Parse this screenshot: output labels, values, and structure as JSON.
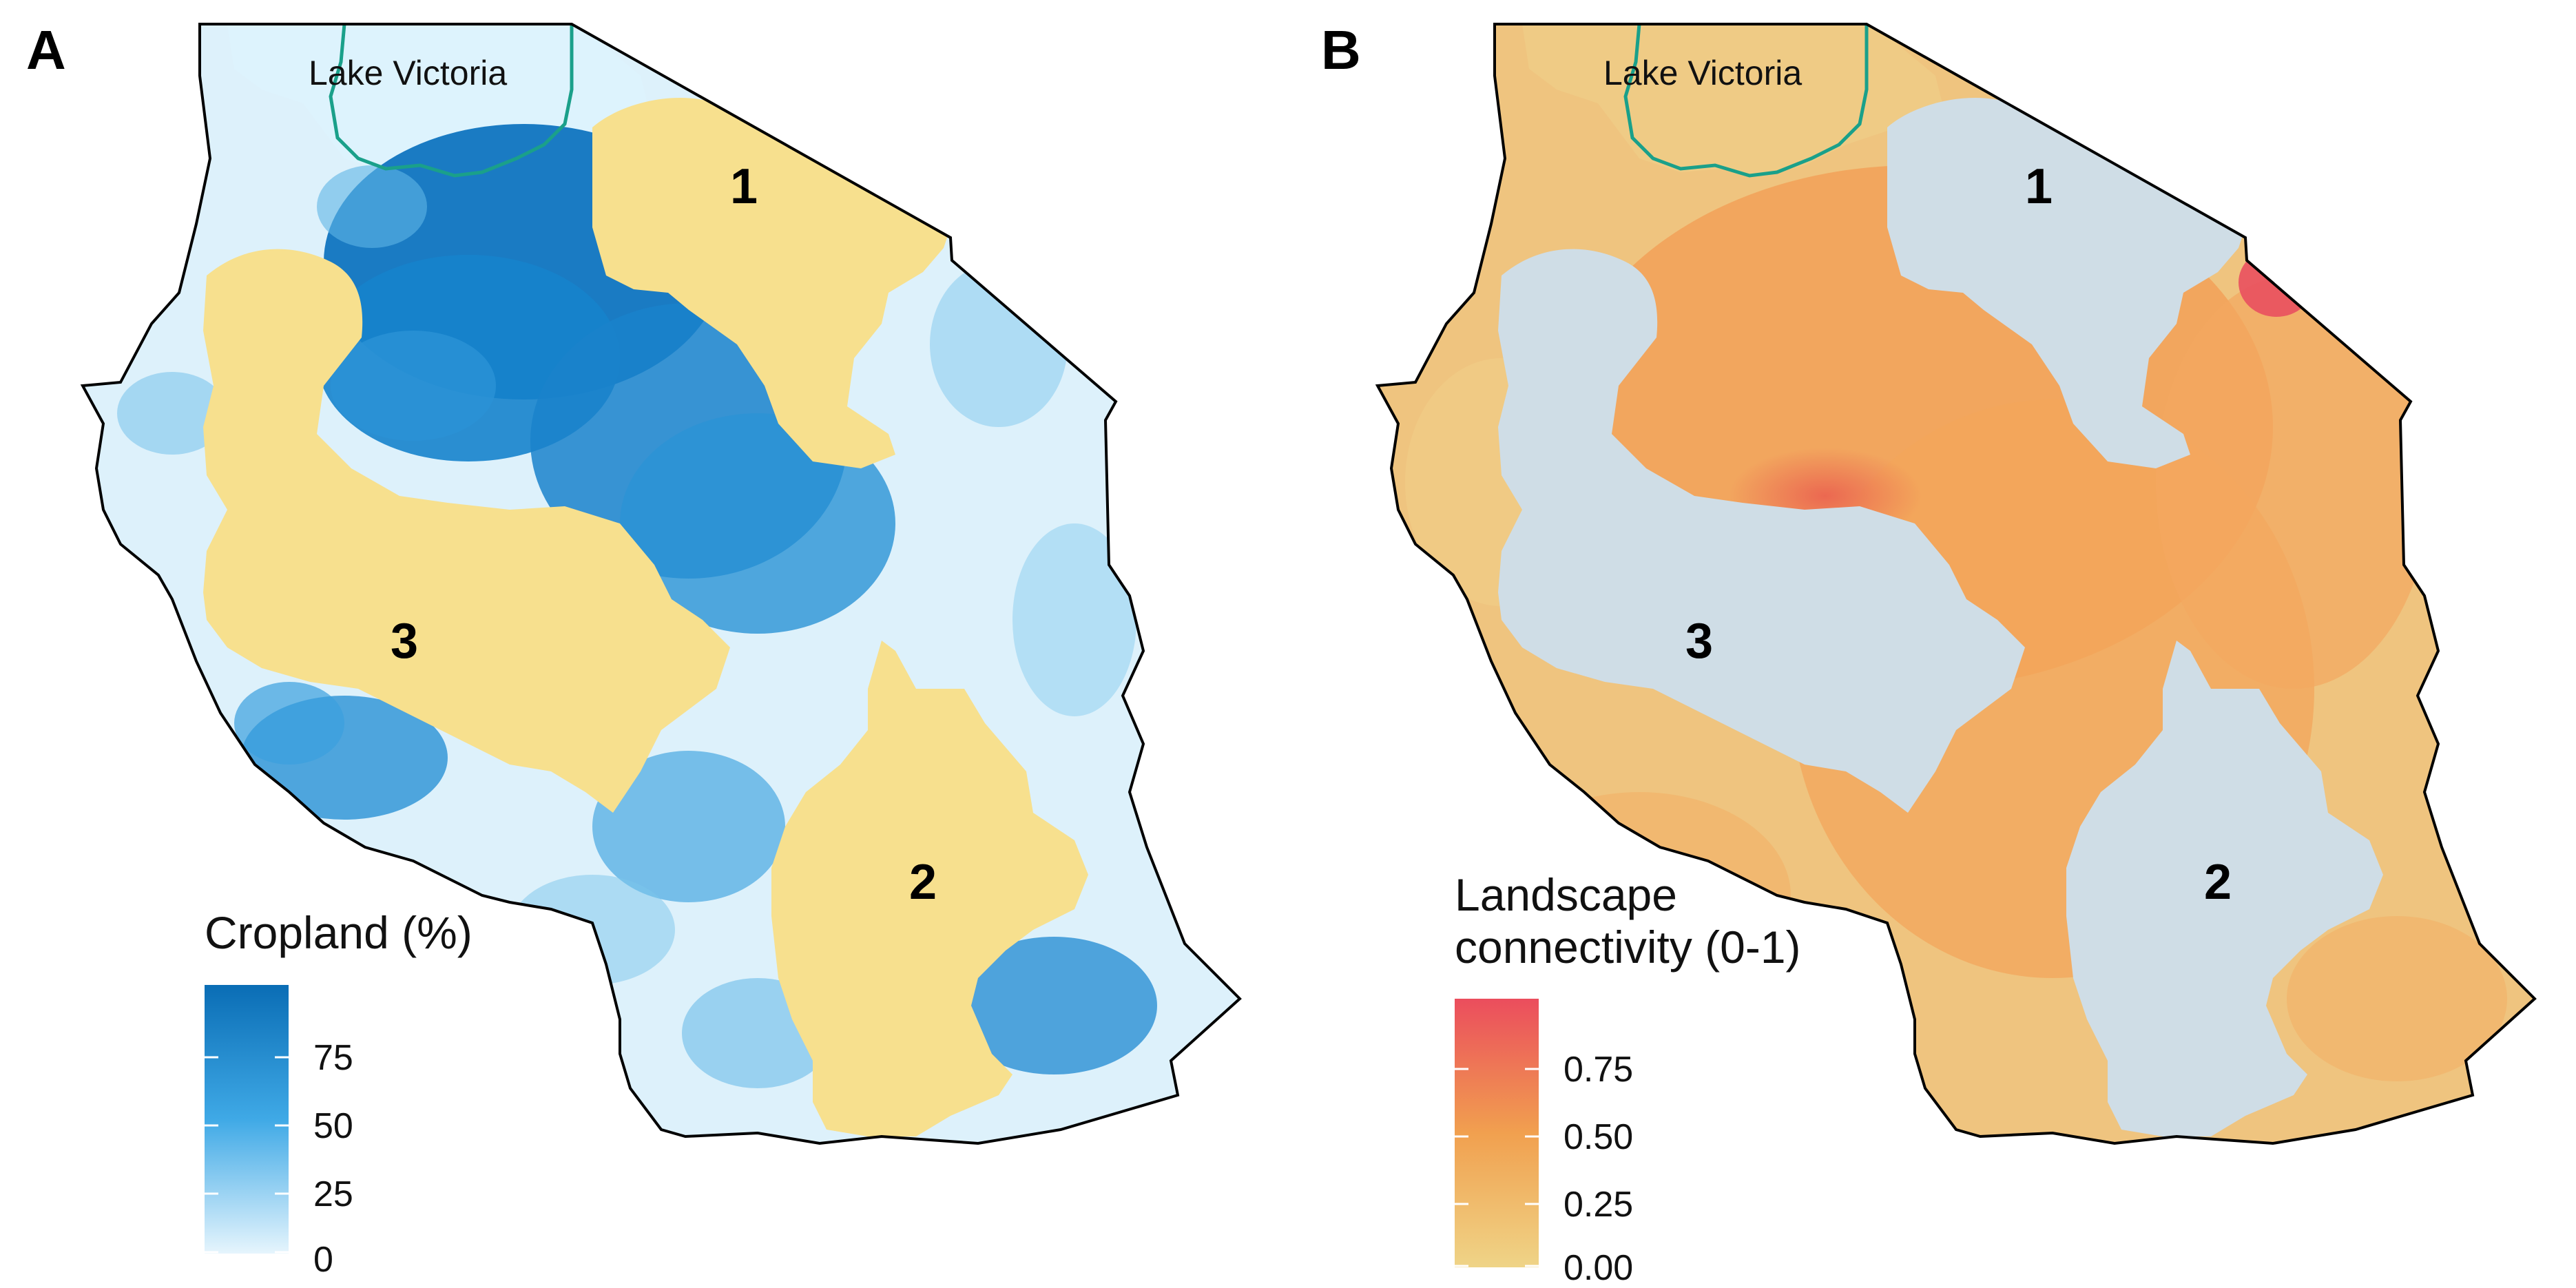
{
  "panels": [
    {
      "id": "A",
      "letter": "A",
      "lake_label": "Lake Victoria",
      "zones": [
        {
          "number": "1"
        },
        {
          "number": "2"
        },
        {
          "number": "3"
        }
      ],
      "legend": {
        "title": "Cropland (%)",
        "ticks": [
          "75",
          "50",
          "25",
          "0"
        ],
        "range": [
          0,
          100
        ],
        "colors": [
          "#e6f5fd",
          "#3fa9e6",
          "#0a6db5"
        ]
      },
      "zone_fill": "#f7e08e"
    },
    {
      "id": "B",
      "letter": "B",
      "lake_label": "Lake Victoria",
      "zones": [
        {
          "number": "1"
        },
        {
          "number": "2"
        },
        {
          "number": "3"
        }
      ],
      "legend": {
        "title_line1": "Landscape",
        "title_line2": "connectivity (0-1)",
        "ticks": [
          "0.75",
          "0.50",
          "0.25",
          "0.00"
        ],
        "range": [
          0,
          1
        ],
        "colors": [
          "#efd487",
          "#f1a04f",
          "#eb4d5d"
        ]
      },
      "zone_fill": "#cfdde6"
    }
  ]
}
